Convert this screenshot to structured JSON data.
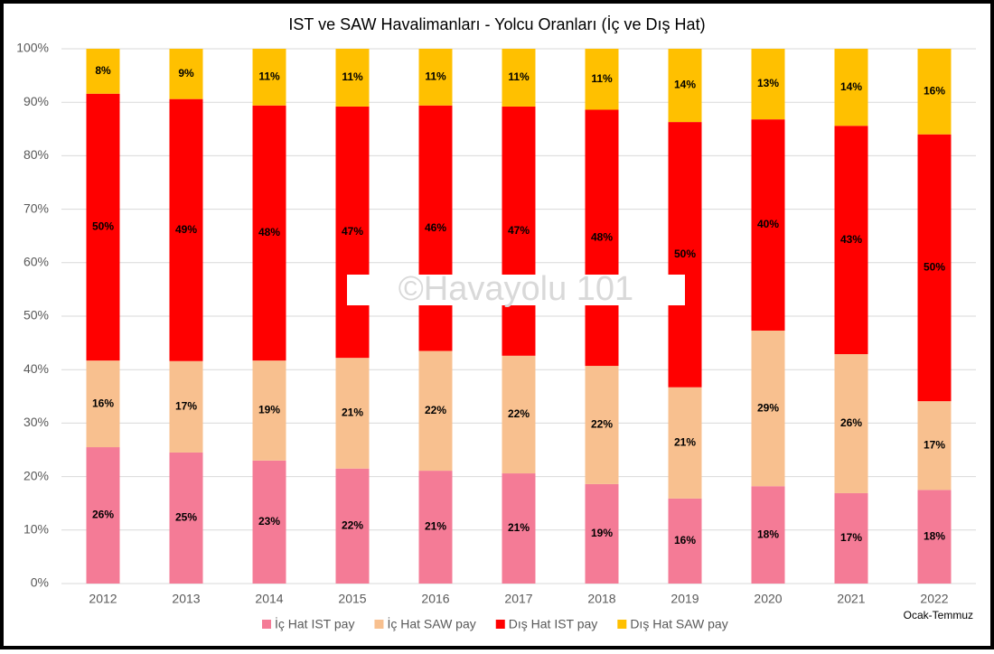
{
  "chart_data": {
    "type": "stacked_bar",
    "title": "IST ve SAW Havalimanları - Yolcu Oranları (İç ve Dış Hat)",
    "categories": [
      "2012",
      "2013",
      "2014",
      "2015",
      "2016",
      "2017",
      "2018",
      "2019",
      "2020",
      "2021",
      "2022"
    ],
    "series": [
      {
        "name": "İç Hat IST pay",
        "color": "#f47b96",
        "values": [
          25.5,
          24.5,
          23.0,
          21.5,
          21.1,
          20.6,
          18.6,
          15.9,
          18.2,
          16.9,
          17.5
        ],
        "value_labels": [
          "26%",
          "25%",
          "23%",
          "22%",
          "21%",
          "21%",
          "19%",
          "16%",
          "18%",
          "17%",
          "18%"
        ]
      },
      {
        "name": "İç Hat SAW pay",
        "color": "#f8c08f",
        "values": [
          16.2,
          17.1,
          18.7,
          20.7,
          22.4,
          22.0,
          22.1,
          20.8,
          29.1,
          26.0,
          16.6
        ],
        "value_labels": [
          "16%",
          "17%",
          "19%",
          "21%",
          "22%",
          "22%",
          "22%",
          "21%",
          "29%",
          "26%",
          "17%"
        ]
      },
      {
        "name": "Dış Hat IST pay",
        "color": "#ff0000",
        "values": [
          49.9,
          49.0,
          47.7,
          47.0,
          45.9,
          46.6,
          47.9,
          49.6,
          39.5,
          42.7,
          49.9
        ],
        "value_labels": [
          "50%",
          "49%",
          "48%",
          "47%",
          "46%",
          "47%",
          "48%",
          "50%",
          "40%",
          "43%",
          "50%"
        ]
      },
      {
        "name": "Dış Hat SAW pay",
        "color": "#ffc000",
        "values": [
          8.4,
          9.4,
          10.6,
          10.8,
          10.6,
          10.8,
          11.4,
          13.7,
          13.2,
          14.4,
          16.0
        ],
        "value_labels": [
          "8%",
          "9%",
          "11%",
          "11%",
          "11%",
          "11%",
          "11%",
          "14%",
          "13%",
          "14%",
          "16%"
        ]
      }
    ],
    "ylim": [
      0,
      100
    ],
    "yticks": [
      {
        "value": 0,
        "label": "0%"
      },
      {
        "value": 10,
        "label": "10%"
      },
      {
        "value": 20,
        "label": "20%"
      },
      {
        "value": 30,
        "label": "30%"
      },
      {
        "value": 40,
        "label": "40%"
      },
      {
        "value": 50,
        "label": "50%"
      },
      {
        "value": 60,
        "label": "60%"
      },
      {
        "value": 70,
        "label": "70%"
      },
      {
        "value": 80,
        "label": "80%"
      },
      {
        "value": 90,
        "label": "90%"
      },
      {
        "value": 100,
        "label": "100%"
      }
    ],
    "grid": true,
    "legend": "bottom",
    "watermark": "©Havayolu 101",
    "note": "Ocak-Temmuz"
  }
}
